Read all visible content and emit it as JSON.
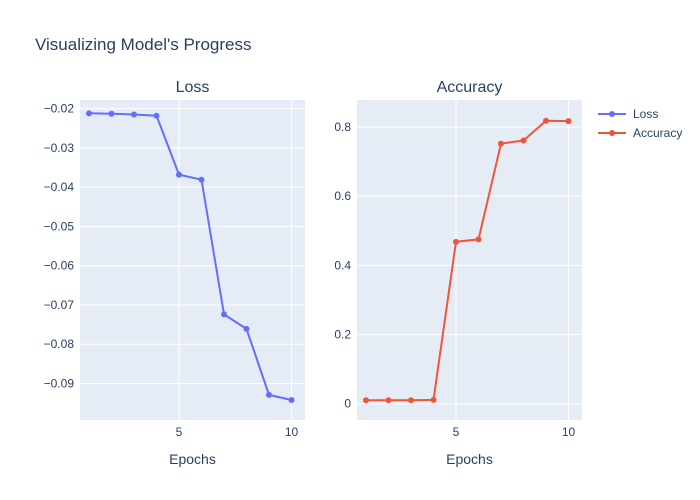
{
  "figure": {
    "title": "Visualizing Model's Progress"
  },
  "chart_data": [
    {
      "type": "line",
      "title": "Loss",
      "xlabel": "Epochs",
      "ylabel": "",
      "x": [
        1,
        2,
        3,
        4,
        5,
        6,
        7,
        8,
        9,
        10
      ],
      "series": [
        {
          "name": "Loss",
          "color": "#636efa",
          "values": [
            -0.0212,
            -0.0213,
            -0.0215,
            -0.0218,
            -0.0368,
            -0.0381,
            -0.0724,
            -0.0761,
            -0.0929,
            -0.0942
          ]
        }
      ],
      "xlim": [
        0.6,
        10.6
      ],
      "ylim": [
        -0.0993,
        -0.0178
      ],
      "xticks": [
        5,
        10
      ],
      "xtick_labels": [
        "5",
        "10"
      ],
      "yticks": [
        -0.02,
        -0.03,
        -0.04,
        -0.05,
        -0.06,
        -0.07,
        -0.08,
        -0.09
      ],
      "ytick_labels": [
        "−0.02",
        "−0.03",
        "−0.04",
        "−0.05",
        "−0.06",
        "−0.07",
        "−0.08",
        "−0.09"
      ],
      "grid": true
    },
    {
      "type": "line",
      "title": "Accuracy",
      "xlabel": "Epochs",
      "ylabel": "",
      "x": [
        1,
        2,
        3,
        4,
        5,
        6,
        7,
        8,
        9,
        10
      ],
      "series": [
        {
          "name": "Accuracy",
          "color": "#ef553b",
          "values": [
            0.01,
            0.01,
            0.01,
            0.011,
            0.468,
            0.475,
            0.752,
            0.761,
            0.818,
            0.817
          ]
        }
      ],
      "xlim": [
        0.6,
        10.6
      ],
      "ylim": [
        -0.047,
        0.878
      ],
      "xticks": [
        5,
        10
      ],
      "xtick_labels": [
        "5",
        "10"
      ],
      "yticks": [
        0,
        0.2,
        0.4,
        0.6,
        0.8
      ],
      "ytick_labels": [
        "0",
        "0.2",
        "0.4",
        "0.6",
        "0.8"
      ],
      "grid": true
    }
  ],
  "legend": {
    "placement": "top-right",
    "items": [
      {
        "label": "Loss",
        "color": "#636efa"
      },
      {
        "label": "Accuracy",
        "color": "#ef553b"
      }
    ]
  }
}
